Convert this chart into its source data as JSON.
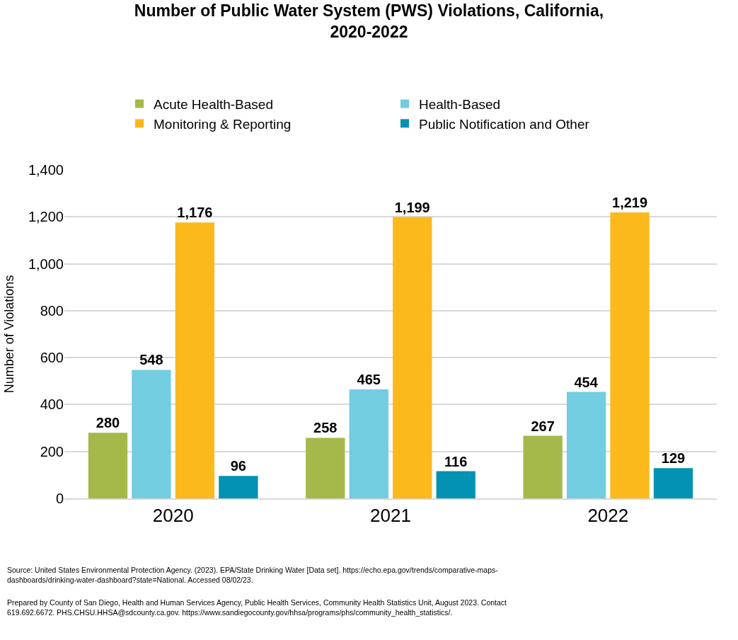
{
  "chart_data": {
    "type": "bar",
    "title": "Number of Public Water System (PWS) Violations, California,\n2020-2022",
    "ylabel": "Number of Violations",
    "categories": [
      "2020",
      "2021",
      "2022"
    ],
    "series": [
      {
        "name": "Acute Health-Based",
        "color": "#a4b94a",
        "values": [
          280,
          258,
          267
        ],
        "value_labels": [
          "280",
          "258",
          "267"
        ]
      },
      {
        "name": "Health-Based",
        "color": "#72cde0",
        "values": [
          548,
          465,
          454
        ],
        "value_labels": [
          "548",
          "465",
          "454"
        ]
      },
      {
        "name": "Monitoring & Reporting",
        "color": "#fbb91c",
        "values": [
          1176,
          1199,
          1219
        ],
        "value_labels": [
          "1,176",
          "1,199",
          "1,219"
        ]
      },
      {
        "name": "Public Notification and Other",
        "color": "#0492b2",
        "values": [
          96,
          116,
          129
        ],
        "value_labels": [
          "96",
          "116",
          "129"
        ]
      }
    ],
    "ylim": [
      0,
      1400
    ],
    "yticks": [
      {
        "value": 0,
        "label": "0"
      },
      {
        "value": 200,
        "label": "200"
      },
      {
        "value": 400,
        "label": "400"
      },
      {
        "value": 600,
        "label": "600"
      },
      {
        "value": 800,
        "label": "800"
      },
      {
        "value": 1000,
        "label": "1,000"
      },
      {
        "value": 1200,
        "label": "1,200"
      },
      {
        "value": 1400,
        "label": "1,400"
      }
    ],
    "grid": "y",
    "legend": "top",
    "annotations": [
      "Source: United States Environmental Protection Agency. (2023). EPA/State Drinking Water [Data set]. https://echo.epa.gov/trends/comparative-maps-\ndashboards/drinking-water-dashboard?state=National. Accessed 08/02/23.",
      "Prepared by County of San Diego, Health and Human Services Agency, Public Health Services, Community Health Statistics Unit, August 2023. Contact\n619.692.6672. PHS.CHSU.HHSA@sdcounty.ca.gov. https://www.sandiegocounty.gov/hhsa/programs/phs/community_health_statistics/."
    ]
  }
}
